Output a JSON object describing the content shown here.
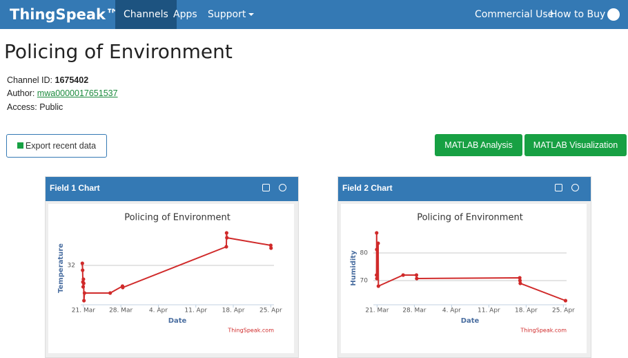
{
  "nav": {
    "logo": "ThingSpeak™",
    "items": [
      "Channels",
      "Apps",
      "Support"
    ],
    "right": [
      "Commercial Use",
      "How to Buy"
    ]
  },
  "channel": {
    "title": "Policing of Environment",
    "id_label": "Channel ID:",
    "id": "1675402",
    "author_label": "Author:",
    "author": "mwa0000017651537",
    "access": "Access: Public"
  },
  "buttons": [
    "Export recent data",
    "MATLAB Analysis",
    "MATLAB Visualization"
  ],
  "panels": [
    "Field 1 Chart",
    "Field 2 Chart"
  ],
  "chart_data": [
    {
      "type": "line",
      "title": "Policing of Environment",
      "ylabel": "Temperature",
      "xlabel": "Date",
      "credit": "ThingSpeak.com",
      "color": "#d02a2a",
      "grid": true,
      "x": [
        20.8,
        20.85,
        20.9,
        20.95,
        21.0,
        21.05,
        21.1,
        21.2,
        26.0,
        28.3,
        28.35,
        47.7,
        47.75,
        47.8,
        56.0,
        56.05
      ],
      "y": [
        32.15,
        31.65,
        30.8,
        30.45,
        31.0,
        30.7,
        29.45,
        30.0,
        30.0,
        30.5,
        30.4,
        33.35,
        34.35,
        34.0,
        33.45,
        33.25
      ],
      "xlim": [
        20.5,
        56.6
      ],
      "ylim": [
        29.15,
        34.45
      ],
      "xticks": [
        {
          "value": 21,
          "label": "21. Mar"
        },
        {
          "value": 28,
          "label": "28. Mar"
        },
        {
          "value": 35,
          "label": "4. Apr"
        },
        {
          "value": 42,
          "label": "11. Apr"
        },
        {
          "value": 49,
          "label": "18. Apr"
        },
        {
          "value": 56,
          "label": "25. Apr"
        }
      ],
      "yticks": [
        32
      ]
    },
    {
      "type": "line",
      "title": "Policing of Environment",
      "ylabel": "Humidity",
      "xlabel": "Date",
      "credit": "ThingSpeak.com",
      "color": "#d02a2a",
      "grid": true,
      "x": [
        20.9,
        20.92,
        20.94,
        20.96,
        21.2,
        21.25,
        25.9,
        28.4,
        28.45,
        47.8,
        47.85,
        47.9,
        56.4
      ],
      "y": [
        72,
        87.25,
        81.25,
        70.75,
        83.5,
        68,
        72,
        72,
        70.75,
        71,
        70,
        69,
        62.75
      ],
      "xlim": [
        20.3,
        56.6
      ],
      "ylim": [
        61.25,
        87.75
      ],
      "xticks": [
        {
          "value": 21,
          "label": "21. Mar"
        },
        {
          "value": 28,
          "label": "28. Mar"
        },
        {
          "value": 35,
          "label": "4. Apr"
        },
        {
          "value": 42,
          "label": "11. Apr"
        },
        {
          "value": 49,
          "label": "18. Apr"
        },
        {
          "value": 56,
          "label": "25. Apr"
        }
      ],
      "yticks": [
        70,
        80
      ]
    }
  ]
}
